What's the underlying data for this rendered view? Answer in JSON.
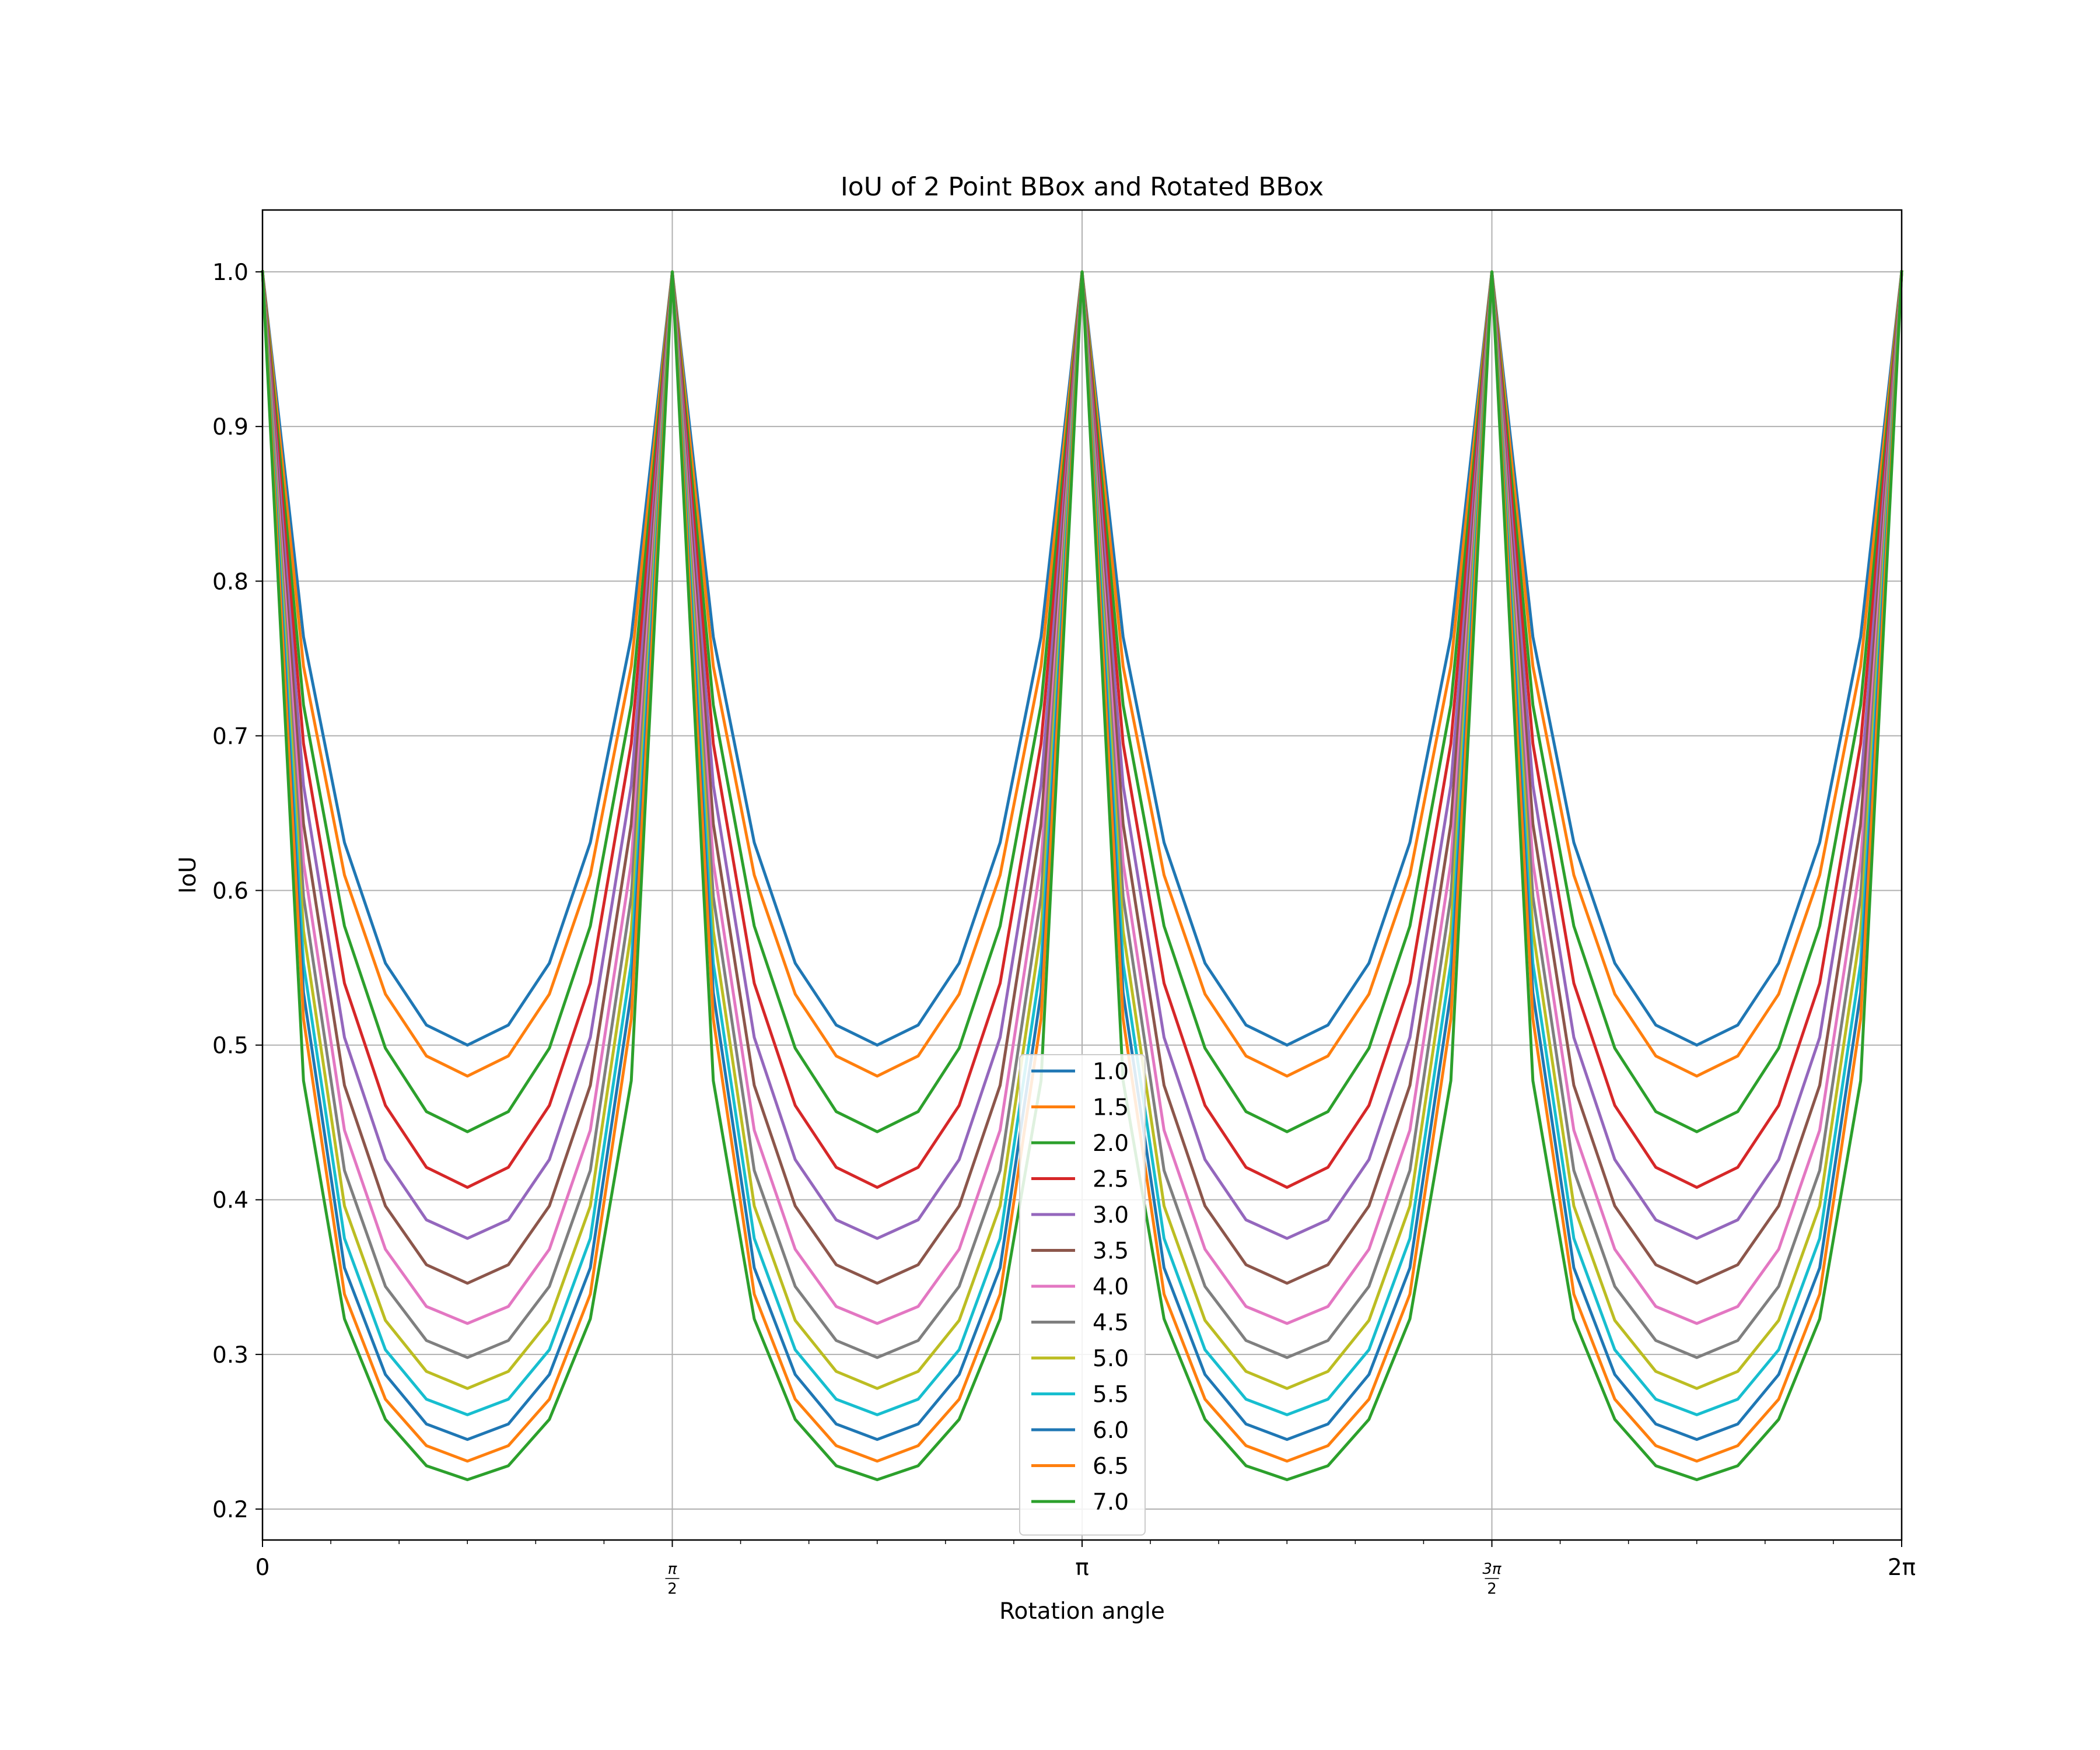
{
  "chart_data": {
    "type": "line",
    "title": "IoU of 2 Point BBox and Rotated BBox",
    "xlabel": "Rotation angle",
    "ylabel": "IoU",
    "xlim": [
      0,
      6.283185307179586
    ],
    "ylim": [
      0.18,
      1.04
    ],
    "grid": true,
    "legend_position": "bottom-center",
    "x_ticks": [
      {
        "value": 0,
        "label": "0"
      },
      {
        "value": 1.5707963267948966,
        "label": "π/2"
      },
      {
        "value": 3.141592653589793,
        "label": "π"
      },
      {
        "value": 4.71238898038469,
        "label": "3π/2"
      },
      {
        "value": 6.283185307179586,
        "label": "2π"
      }
    ],
    "y_ticks": [
      {
        "value": 0.2,
        "label": "0.2"
      },
      {
        "value": 0.3,
        "label": "0.3"
      },
      {
        "value": 0.4,
        "label": "0.4"
      },
      {
        "value": 0.5,
        "label": "0.5"
      },
      {
        "value": 0.6,
        "label": "0.6"
      },
      {
        "value": 0.7,
        "label": "0.7"
      },
      {
        "value": 0.8,
        "label": "0.8"
      },
      {
        "value": 0.9,
        "label": "0.9"
      },
      {
        "value": 1.0,
        "label": "1.0"
      }
    ],
    "x": [
      0,
      0.1571,
      0.3142,
      0.4712,
      0.6283,
      0.7854,
      0.9425,
      1.0996,
      1.2566,
      1.4137,
      1.5708,
      1.7279,
      1.885,
      2.042,
      2.1991,
      2.3562,
      2.5133,
      2.6704,
      2.8274,
      2.9845,
      3.1416,
      3.2987,
      3.4558,
      3.6128,
      3.7699,
      3.927,
      4.0841,
      4.2412,
      4.3982,
      4.5553,
      4.7124,
      4.8695,
      5.0265,
      5.1836,
      5.3407,
      5.4978,
      5.6549,
      5.8119,
      5.969,
      6.1261,
      6.2832
    ],
    "series": [
      {
        "name": "1.0",
        "color": "#1f77b4",
        "values": [
          1.0,
          0.764,
          0.631,
          0.553,
          0.513,
          0.5,
          0.513,
          0.553,
          0.631,
          0.764,
          1.0,
          0.764,
          0.631,
          0.553,
          0.513,
          0.5,
          0.513,
          0.553,
          0.631,
          0.764,
          1.0,
          0.764,
          0.631,
          0.553,
          0.513,
          0.5,
          0.513,
          0.553,
          0.631,
          0.764,
          1.0,
          0.764,
          0.631,
          0.553,
          0.513,
          0.5,
          0.513,
          0.553,
          0.631,
          0.764,
          1.0
        ]
      },
      {
        "name": "1.5",
        "color": "#ff7f0e",
        "values": [
          1.0,
          0.745,
          0.61,
          0.533,
          0.493,
          0.48,
          0.493,
          0.533,
          0.61,
          0.745,
          1.0,
          0.745,
          0.61,
          0.533,
          0.493,
          0.48,
          0.493,
          0.533,
          0.61,
          0.745,
          1.0,
          0.745,
          0.61,
          0.533,
          0.493,
          0.48,
          0.493,
          0.533,
          0.61,
          0.745,
          1.0,
          0.745,
          0.61,
          0.533,
          0.493,
          0.48,
          0.493,
          0.533,
          0.61,
          0.745,
          1.0
        ]
      },
      {
        "name": "2.0",
        "color": "#2ca02c",
        "values": [
          1.0,
          0.72,
          0.577,
          0.498,
          0.457,
          0.444,
          0.457,
          0.498,
          0.577,
          0.72,
          1.0,
          0.72,
          0.577,
          0.498,
          0.457,
          0.444,
          0.457,
          0.498,
          0.577,
          0.72,
          1.0,
          0.72,
          0.577,
          0.498,
          0.457,
          0.444,
          0.457,
          0.498,
          0.577,
          0.72,
          1.0,
          0.72,
          0.577,
          0.498,
          0.457,
          0.444,
          0.457,
          0.498,
          0.577,
          0.72,
          1.0
        ]
      },
      {
        "name": "2.5",
        "color": "#d62728",
        "values": [
          1.0,
          0.695,
          0.54,
          0.461,
          0.421,
          0.408,
          0.421,
          0.461,
          0.54,
          0.695,
          1.0,
          0.695,
          0.54,
          0.461,
          0.421,
          0.408,
          0.421,
          0.461,
          0.54,
          0.695,
          1.0,
          0.695,
          0.54,
          0.461,
          0.421,
          0.408,
          0.421,
          0.461,
          0.54,
          0.695,
          1.0,
          0.695,
          0.54,
          0.461,
          0.421,
          0.408,
          0.421,
          0.461,
          0.54,
          0.695,
          1.0
        ]
      },
      {
        "name": "3.0",
        "color": "#9467bd",
        "values": [
          1.0,
          0.668,
          0.505,
          0.426,
          0.387,
          0.375,
          0.387,
          0.426,
          0.505,
          0.668,
          1.0,
          0.668,
          0.505,
          0.426,
          0.387,
          0.375,
          0.387,
          0.426,
          0.505,
          0.668,
          1.0,
          0.668,
          0.505,
          0.426,
          0.387,
          0.375,
          0.387,
          0.426,
          0.505,
          0.668,
          1.0,
          0.668,
          0.505,
          0.426,
          0.387,
          0.375,
          0.387,
          0.426,
          0.505,
          0.668,
          1.0
        ]
      },
      {
        "name": "3.5",
        "color": "#8c564b",
        "values": [
          1.0,
          0.643,
          0.474,
          0.396,
          0.358,
          0.346,
          0.358,
          0.396,
          0.474,
          0.643,
          1.0,
          0.643,
          0.474,
          0.396,
          0.358,
          0.346,
          0.358,
          0.396,
          0.474,
          0.643,
          1.0,
          0.643,
          0.474,
          0.396,
          0.358,
          0.346,
          0.358,
          0.396,
          0.474,
          0.643,
          1.0,
          0.643,
          0.474,
          0.396,
          0.358,
          0.346,
          0.358,
          0.396,
          0.474,
          0.643,
          1.0
        ]
      },
      {
        "name": "4.0",
        "color": "#e377c2",
        "values": [
          1.0,
          0.618,
          0.445,
          0.368,
          0.331,
          0.32,
          0.331,
          0.368,
          0.445,
          0.618,
          1.0,
          0.618,
          0.445,
          0.368,
          0.331,
          0.32,
          0.331,
          0.368,
          0.445,
          0.618,
          1.0,
          0.618,
          0.445,
          0.368,
          0.331,
          0.32,
          0.331,
          0.368,
          0.445,
          0.618,
          1.0,
          0.618,
          0.445,
          0.368,
          0.331,
          0.32,
          0.331,
          0.368,
          0.445,
          0.618,
          1.0
        ]
      },
      {
        "name": "4.5",
        "color": "#7f7f7f",
        "values": [
          1.0,
          0.596,
          0.419,
          0.344,
          0.309,
          0.298,
          0.309,
          0.344,
          0.419,
          0.596,
          1.0,
          0.596,
          0.419,
          0.344,
          0.309,
          0.298,
          0.309,
          0.344,
          0.419,
          0.596,
          1.0,
          0.596,
          0.419,
          0.344,
          0.309,
          0.298,
          0.309,
          0.344,
          0.419,
          0.596,
          1.0,
          0.596,
          0.419,
          0.344,
          0.309,
          0.298,
          0.309,
          0.344,
          0.419,
          0.596,
          1.0
        ]
      },
      {
        "name": "5.0",
        "color": "#bcbd22",
        "values": [
          1.0,
          0.574,
          0.396,
          0.322,
          0.289,
          0.278,
          0.289,
          0.322,
          0.396,
          0.574,
          1.0,
          0.574,
          0.396,
          0.322,
          0.289,
          0.278,
          0.289,
          0.322,
          0.396,
          0.574,
          1.0,
          0.574,
          0.396,
          0.322,
          0.289,
          0.278,
          0.289,
          0.322,
          0.396,
          0.574,
          1.0,
          0.574,
          0.396,
          0.322,
          0.289,
          0.278,
          0.289,
          0.322,
          0.396,
          0.574,
          1.0
        ]
      },
      {
        "name": "5.5",
        "color": "#17becf",
        "values": [
          1.0,
          0.553,
          0.375,
          0.303,
          0.271,
          0.261,
          0.271,
          0.303,
          0.375,
          0.553,
          1.0,
          0.553,
          0.375,
          0.303,
          0.271,
          0.261,
          0.271,
          0.303,
          0.375,
          0.553,
          1.0,
          0.553,
          0.375,
          0.303,
          0.271,
          0.261,
          0.271,
          0.303,
          0.375,
          0.553,
          1.0,
          0.553,
          0.375,
          0.303,
          0.271,
          0.261,
          0.271,
          0.303,
          0.375,
          0.553,
          1.0
        ]
      },
      {
        "name": "6.0",
        "color": "#1f77b4",
        "values": [
          1.0,
          0.534,
          0.356,
          0.287,
          0.255,
          0.245,
          0.255,
          0.287,
          0.356,
          0.534,
          1.0,
          0.534,
          0.356,
          0.287,
          0.255,
          0.245,
          0.255,
          0.287,
          0.356,
          0.534,
          1.0,
          0.534,
          0.356,
          0.287,
          0.255,
          0.245,
          0.255,
          0.287,
          0.356,
          0.534,
          1.0,
          0.534,
          0.356,
          0.287,
          0.255,
          0.245,
          0.255,
          0.287,
          0.356,
          0.534,
          1.0
        ]
      },
      {
        "name": "6.5",
        "color": "#ff7f0e",
        "values": [
          1.0,
          0.517,
          0.339,
          0.271,
          0.241,
          0.231,
          0.241,
          0.271,
          0.339,
          0.517,
          1.0,
          0.517,
          0.339,
          0.271,
          0.241,
          0.231,
          0.241,
          0.271,
          0.339,
          0.517,
          1.0,
          0.517,
          0.339,
          0.271,
          0.241,
          0.231,
          0.241,
          0.271,
          0.339,
          0.517,
          1.0,
          0.517,
          0.339,
          0.271,
          0.241,
          0.231,
          0.241,
          0.271,
          0.339,
          0.517,
          1.0
        ]
      },
      {
        "name": "7.0",
        "color": "#2ca02c",
        "values": [
          1.0,
          0.477,
          0.323,
          0.258,
          0.228,
          0.219,
          0.228,
          0.258,
          0.323,
          0.477,
          1.0,
          0.477,
          0.323,
          0.258,
          0.228,
          0.219,
          0.228,
          0.258,
          0.323,
          0.477,
          1.0,
          0.477,
          0.323,
          0.258,
          0.228,
          0.219,
          0.228,
          0.258,
          0.323,
          0.477,
          1.0,
          0.477,
          0.323,
          0.258,
          0.228,
          0.219,
          0.228,
          0.258,
          0.323,
          0.477,
          1.0
        ]
      }
    ]
  }
}
